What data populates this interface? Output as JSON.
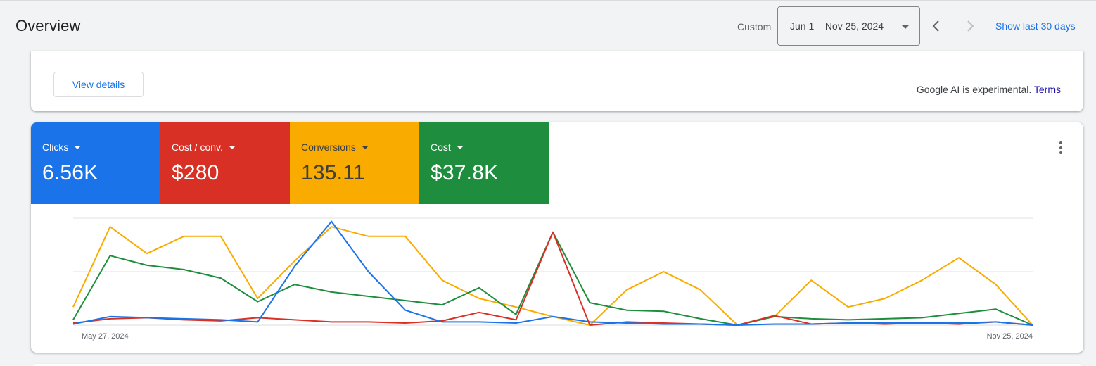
{
  "header": {
    "title": "Overview",
    "custom_label": "Custom",
    "date_range": "Jun 1 – Nov 25, 2024",
    "show_last": "Show last 30 days"
  },
  "ai_card": {
    "view_details": "View details",
    "note": "Google AI is experimental.",
    "terms": "Terms"
  },
  "metrics": [
    {
      "label": "Clicks",
      "value": "6.56K",
      "color": "#1a73e8",
      "text_color": "#ffffff"
    },
    {
      "label": "Cost / conv.",
      "value": "$280",
      "color": "#d93025",
      "text_color": "#ffffff"
    },
    {
      "label": "Conversions",
      "value": "135.11",
      "color": "#f9ab00",
      "text_color": "#3c4043"
    },
    {
      "label": "Cost",
      "value": "$37.8K",
      "color": "#1e8e3e",
      "text_color": "#ffffff"
    }
  ],
  "chart_data": {
    "type": "line",
    "x_start_label": "May 27, 2024",
    "x_end_label": "Nov 25, 2024",
    "points": 27,
    "grid": true,
    "ylim": [
      0,
      1
    ],
    "series": [
      {
        "color": "#f9ab00",
        "values": [
          0.17,
          0.92,
          0.67,
          0.83,
          0.83,
          0.25,
          0.6,
          0.92,
          0.83,
          0.83,
          0.42,
          0.25,
          0.17,
          0.08,
          0.0,
          0.33,
          0.5,
          0.33,
          0.0,
          0.08,
          0.42,
          0.17,
          0.25,
          0.42,
          0.63,
          0.38,
          0.0
        ]
      },
      {
        "color": "#1e8e3e",
        "values": [
          0.05,
          0.65,
          0.56,
          0.52,
          0.44,
          0.22,
          0.38,
          0.31,
          0.27,
          0.23,
          0.19,
          0.35,
          0.1,
          0.87,
          0.21,
          0.14,
          0.13,
          0.06,
          0.0,
          0.08,
          0.06,
          0.05,
          0.06,
          0.07,
          0.11,
          0.15,
          0.0
        ]
      },
      {
        "color": "#d93025",
        "values": [
          0.02,
          0.06,
          0.07,
          0.05,
          0.04,
          0.07,
          0.05,
          0.03,
          0.03,
          0.02,
          0.04,
          0.12,
          0.05,
          0.87,
          0.0,
          0.03,
          0.02,
          0.01,
          0.0,
          0.09,
          0.01,
          0.02,
          0.01,
          0.02,
          0.01,
          0.03,
          0.0
        ]
      },
      {
        "color": "#1a73e8",
        "values": [
          0.01,
          0.08,
          0.07,
          0.06,
          0.05,
          0.03,
          0.55,
          0.97,
          0.5,
          0.14,
          0.03,
          0.03,
          0.02,
          0.08,
          0.03,
          0.02,
          0.01,
          0.01,
          0.0,
          0.01,
          0.01,
          0.02,
          0.02,
          0.02,
          0.02,
          0.03,
          0.0
        ]
      }
    ]
  }
}
